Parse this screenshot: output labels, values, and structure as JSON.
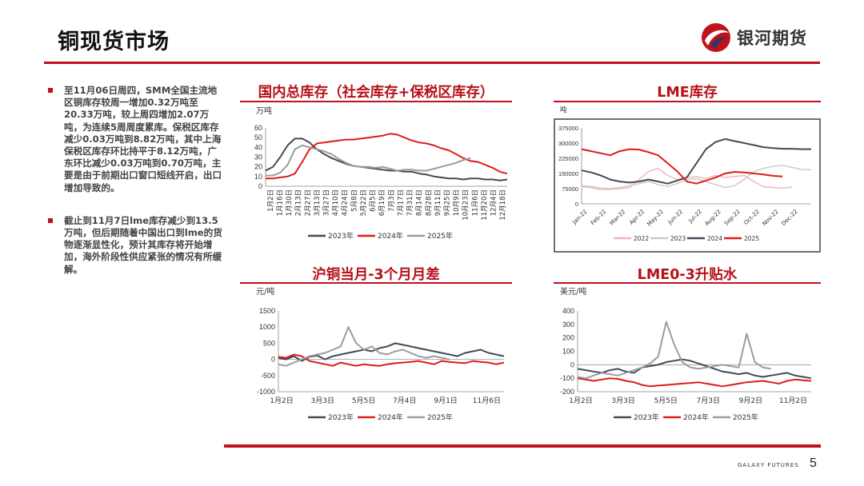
{
  "header": {
    "title": "铜现货市场",
    "logo_text": "银河期货",
    "brand_color": "#c0111c"
  },
  "bullets": [
    {
      "text": "至11月06日周四，SMM全国主流地区铜库存较周一增加0.32万吨至20.33万吨，较上周四增加2.07万吨，为连续5周周度累库。保税区库存减少0.03万吨到8.82万吨，其中上海保税区库存环比持平于8.12万吨，广东环比减少0.03万吨到0.70万吨，主要是由于前期出口窗口短线开启，出口增加导致的。"
    },
    {
      "text": "截止到11月7日lme库存减少到13.5万吨，但后期随着中国出口到lme的货物逐渐显性化，预计其库存将开始增加，海外阶段性供应紧张的情况有所缓解。"
    }
  ],
  "footer": {
    "brand": "GALAXY FUTURES",
    "page": "5"
  },
  "chart_data": [
    {
      "id": "domestic",
      "type": "line",
      "title": "国内总库存（社会库存+保税区库存）",
      "unit": "万吨",
      "ylim": [
        0,
        60
      ],
      "yticks": [
        0,
        10,
        20,
        30,
        40,
        50,
        60
      ],
      "x_labels": [
        "1月2日",
        "1月16日",
        "1月30日",
        "2月13日",
        "2月27日",
        "3月13日",
        "3月27日",
        "4月10日",
        "4月24日",
        "5月8日",
        "5月22日",
        "6月5日",
        "6月19日",
        "7月3日",
        "7月17日",
        "7月31日",
        "8月14日",
        "8月28日",
        "9月11日",
        "9月25日",
        "10月9日",
        "10月23日",
        "11月6日",
        "11月20日",
        "12月4日",
        "12月18日"
      ],
      "series": [
        {
          "name": "2023年",
          "color": "#434a58",
          "values": [
            16,
            20,
            30,
            42,
            49,
            49,
            45,
            38,
            33,
            29,
            26,
            23,
            21,
            20,
            19,
            18,
            17,
            16,
            16,
            15,
            15,
            13,
            12,
            10,
            9,
            8,
            8,
            7,
            8,
            8,
            7,
            7,
            6,
            7
          ]
        },
        {
          "name": "2024年",
          "color": "#e01b1b",
          "values": [
            8,
            8,
            9,
            10,
            13,
            25,
            38,
            44,
            45,
            46,
            47,
            48,
            48,
            49,
            50,
            51,
            52,
            54,
            53,
            50,
            47,
            45,
            44,
            42,
            39,
            37,
            33,
            29,
            26,
            25,
            22,
            19,
            15,
            13
          ]
        },
        {
          "name": "2025年",
          "color": "#9c9c9c",
          "values": [
            11,
            11,
            14,
            22,
            38,
            42,
            40,
            38,
            36,
            33,
            28,
            24,
            21,
            20,
            20,
            19,
            20,
            18,
            16,
            17,
            17,
            16,
            16,
            18,
            20,
            22,
            24,
            27,
            29
          ]
        }
      ]
    },
    {
      "id": "lme",
      "type": "line",
      "title": "LME库存",
      "unit": "吨",
      "ylim": [
        0,
        375000
      ],
      "yticks": [
        "0",
        "75000",
        "150000",
        "225000",
        "300000",
        "375000"
      ],
      "x_labels": [
        "Jan-22",
        "Feb-22",
        "Mar-22",
        "Apr-22",
        "May-22",
        "Jun-22",
        "Jul-22",
        "Aug-22",
        "Sep-22",
        "Oct-22",
        "Nov-22",
        "Dec-22"
      ],
      "series": [
        {
          "name": "2022",
          "color": "#f4b4b4",
          "values": [
            85000,
            80000,
            70000,
            72000,
            75000,
            80000,
            120000,
            160000,
            175000,
            140000,
            120000,
            130000,
            135000,
            125000,
            140000,
            130000,
            135000,
            140000,
            110000,
            85000,
            80000,
            78000,
            82000
          ]
        },
        {
          "name": "2023",
          "color": "#c9c9c9",
          "values": [
            90000,
            85000,
            78000,
            75000,
            80000,
            90000,
            100000,
            110000,
            95000,
            85000,
            100000,
            120000,
            125000,
            110000,
            95000,
            80000,
            90000,
            120000,
            160000,
            175000,
            185000,
            190000,
            180000,
            170000,
            168000
          ]
        },
        {
          "name": "2024",
          "color": "#434a58",
          "values": [
            165000,
            155000,
            140000,
            120000,
            110000,
            105000,
            110000,
            120000,
            110000,
            100000,
            115000,
            130000,
            200000,
            270000,
            305000,
            320000,
            310000,
            300000,
            290000,
            280000,
            275000,
            272000,
            272000,
            270000,
            270000
          ]
        },
        {
          "name": "2025",
          "color": "#e01b1b",
          "values": [
            270000,
            260000,
            250000,
            240000,
            260000,
            270000,
            268000,
            255000,
            240000,
            200000,
            160000,
            110000,
            100000,
            115000,
            130000,
            150000,
            158000,
            155000,
            150000,
            145000,
            138000,
            135000
          ]
        }
      ]
    },
    {
      "id": "shfe",
      "type": "line",
      "title": "沪铜当月-3个月月差",
      "unit": "元/吨",
      "ylim": [
        -1000,
        1500
      ],
      "yticks": [
        -1000,
        -500,
        0,
        500,
        1000,
        1500
      ],
      "x_labels": [
        "1月2日",
        "3月3日",
        "5月5日",
        "7月4日",
        "9月1日",
        "11月6日"
      ],
      "series": [
        {
          "name": "2023年",
          "color": "#434a58",
          "values": [
            50,
            0,
            100,
            -50,
            80,
            120,
            0,
            100,
            150,
            200,
            250,
            300,
            250,
            350,
            400,
            500,
            450,
            400,
            350,
            300,
            250,
            200,
            150,
            100,
            200,
            250,
            300,
            200,
            150,
            100
          ]
        },
        {
          "name": "2024年",
          "color": "#e01b1b",
          "values": [
            80,
            50,
            150,
            100,
            -50,
            -100,
            -150,
            -200,
            -100,
            -150,
            -200,
            -150,
            -180,
            -200,
            -150,
            -120,
            -100,
            -80,
            -50,
            -100,
            -150,
            -50,
            -80,
            -100,
            -120,
            -50,
            -80,
            -100,
            -150,
            -100
          ]
        },
        {
          "name": "2025年",
          "color": "#9c9c9c",
          "values": [
            -150,
            -200,
            -100,
            0,
            100,
            150,
            200,
            300,
            400,
            1000,
            500,
            300,
            400,
            200,
            150,
            250,
            300,
            200,
            100,
            50,
            100,
            50,
            0
          ]
        }
      ]
    },
    {
      "id": "lme03",
      "type": "line",
      "title": "LME0-3升贴水",
      "unit": "美元/吨",
      "ylim": [
        -200,
        400
      ],
      "yticks": [
        -200,
        -100,
        0,
        100,
        200,
        300,
        400
      ],
      "x_labels": [
        "1月2日",
        "3月3日",
        "5月5日",
        "7月3日",
        "9月2日",
        "11月2日"
      ],
      "series": [
        {
          "name": "2023年",
          "color": "#434a58",
          "values": [
            -30,
            -40,
            -50,
            -60,
            -40,
            -30,
            -50,
            -60,
            -20,
            -10,
            0,
            20,
            30,
            40,
            30,
            10,
            -10,
            -30,
            -50,
            -60,
            -70,
            -60,
            -80,
            -90,
            -80,
            -70,
            -60,
            -80,
            -90,
            -100
          ]
        },
        {
          "name": "2024年",
          "color": "#e01b1b",
          "values": [
            -100,
            -110,
            -120,
            -110,
            -100,
            -105,
            -120,
            -130,
            -150,
            -160,
            -155,
            -150,
            -145,
            -140,
            -135,
            -130,
            -140,
            -150,
            -160,
            -150,
            -140,
            -130,
            -125,
            -120,
            -130,
            -140,
            -120,
            -110,
            -115,
            -120
          ]
        },
        {
          "name": "2025年",
          "color": "#9c9c9c",
          "values": [
            -90,
            -100,
            -80,
            -60,
            -70,
            -80,
            -60,
            -40,
            -20,
            10,
            60,
            320,
            150,
            20,
            -20,
            -30,
            -20,
            -10,
            0,
            -10,
            -20,
            230,
            20,
            -20,
            -30
          ]
        }
      ]
    }
  ]
}
